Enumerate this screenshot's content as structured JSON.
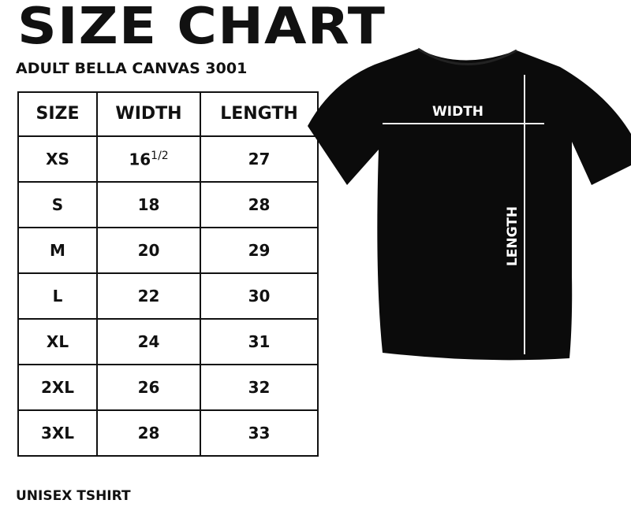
{
  "title": "SIZE CHART",
  "subtitle": "ADULT BELLA CANVAS 3001",
  "table": {
    "headers": [
      "SIZE",
      "WIDTH",
      "LENGTH"
    ],
    "rows": [
      {
        "size": "XS",
        "width": "16",
        "width_fraction": "1/2",
        "length": "27"
      },
      {
        "size": "S",
        "width": "18",
        "length": "28"
      },
      {
        "size": "M",
        "width": "20",
        "length": "29"
      },
      {
        "size": "L",
        "width": "22",
        "length": "30"
      },
      {
        "size": "XL",
        "width": "24",
        "length": "31"
      },
      {
        "size": "2XL",
        "width": "26",
        "length": "32"
      },
      {
        "size": "3XL",
        "width": "28",
        "length": "33"
      }
    ]
  },
  "shirt": {
    "color": "#0b0b0b",
    "width_label": "WIDTH",
    "length_label": "LENGTH"
  },
  "footer": "UNISEX TSHIRT"
}
